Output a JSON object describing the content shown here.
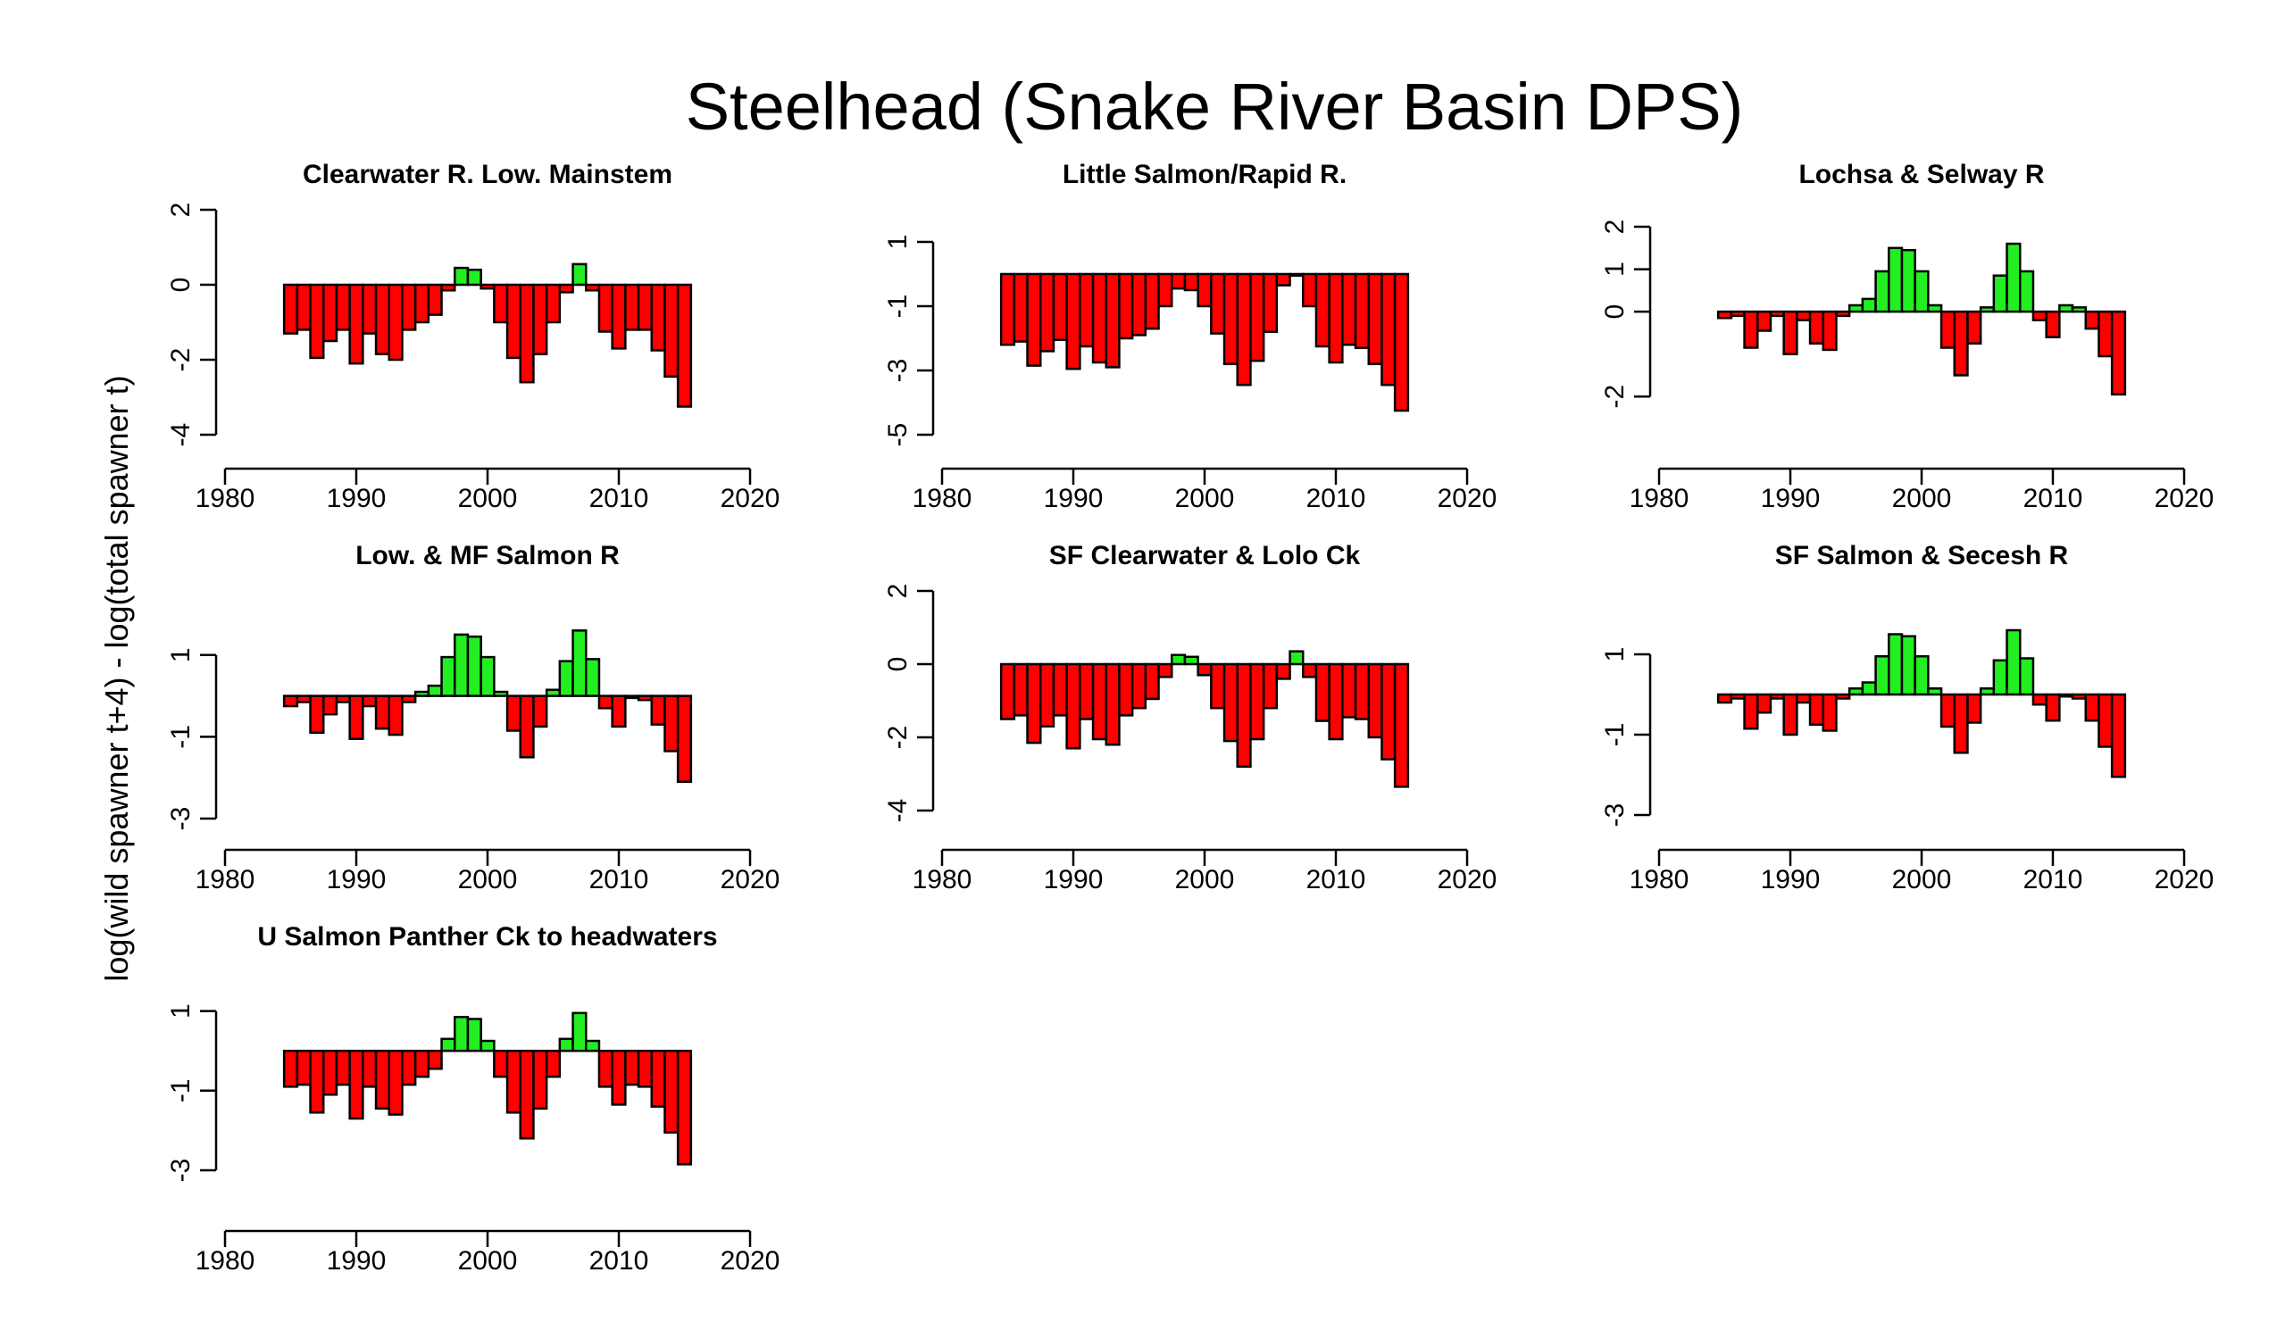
{
  "figure": {
    "title": "Steelhead (Snake River Basin DPS)",
    "ylabel": "log(wild spawner t+4) - log(total spawner t)",
    "colors": {
      "positive": "#22ee22",
      "negative": "#ff0000",
      "axis": "#000000"
    }
  },
  "chart_data": [
    {
      "type": "bar",
      "title": "Clearwater R. Low. Mainstem",
      "x": [
        1985,
        1986,
        1987,
        1988,
        1989,
        1990,
        1991,
        1992,
        1993,
        1994,
        1995,
        1996,
        1997,
        1998,
        1999,
        2000,
        2001,
        2002,
        2003,
        2004,
        2005,
        2006,
        2007,
        2008,
        2009,
        2010,
        2011,
        2012,
        2013,
        2014,
        2015
      ],
      "values": [
        -1.3,
        -1.2,
        -1.95,
        -1.5,
        -1.2,
        -2.1,
        -1.3,
        -1.85,
        -2.0,
        -1.2,
        -1.0,
        -0.8,
        -0.15,
        0.45,
        0.4,
        -0.1,
        -1.0,
        -1.95,
        -2.6,
        -1.85,
        -1.0,
        -0.2,
        0.55,
        -0.15,
        -1.25,
        -1.7,
        -1.2,
        -1.2,
        -1.75,
        -2.45,
        -3.25
      ],
      "xlim": [
        1980,
        2020
      ],
      "xticks": [
        1980,
        1990,
        2000,
        2010,
        2020
      ],
      "ylim": [
        -4,
        2
      ],
      "yticks": [
        -4,
        -2,
        0,
        2
      ],
      "ytick_labels": [
        "-4",
        "-2",
        "0",
        "2"
      ]
    },
    {
      "type": "bar",
      "title": "Little Salmon/Rapid R.",
      "x": [
        1985,
        1986,
        1987,
        1988,
        1989,
        1990,
        1991,
        1992,
        1993,
        1994,
        1995,
        1996,
        1997,
        1998,
        1999,
        2000,
        2001,
        2002,
        2003,
        2004,
        2005,
        2006,
        2007,
        2008,
        2009,
        2010,
        2011,
        2012,
        2013,
        2014,
        2015
      ],
      "values": [
        -2.2,
        -2.1,
        -2.85,
        -2.4,
        -2.05,
        -2.95,
        -2.25,
        -2.75,
        -2.9,
        -2.0,
        -1.9,
        -1.7,
        -1.0,
        -0.45,
        -0.5,
        -1.0,
        -1.85,
        -2.8,
        -3.45,
        -2.7,
        -1.8,
        -0.35,
        -0.05,
        -1.0,
        -2.25,
        -2.75,
        -2.2,
        -2.3,
        -2.8,
        -3.45,
        -4.25
      ],
      "xlim": [
        1980,
        2020
      ],
      "xticks": [
        1980,
        1990,
        2000,
        2010,
        2020
      ],
      "ylim": [
        -5,
        2
      ],
      "yticks": [
        -5,
        -3,
        -1,
        1
      ],
      "ytick_labels": [
        "-5",
        "-3",
        "-1",
        "1"
      ]
    },
    {
      "type": "bar",
      "title": "Lochsa & Selway R",
      "x": [
        1985,
        1986,
        1987,
        1988,
        1989,
        1990,
        1991,
        1992,
        1993,
        1994,
        1995,
        1996,
        1997,
        1998,
        1999,
        2000,
        2001,
        2002,
        2003,
        2004,
        2005,
        2006,
        2007,
        2008,
        2009,
        2010,
        2011,
        2012,
        2013,
        2014,
        2015
      ],
      "values": [
        -0.15,
        -0.1,
        -0.85,
        -0.45,
        -0.1,
        -1.0,
        -0.2,
        -0.75,
        -0.9,
        -0.1,
        0.15,
        0.3,
        0.95,
        1.5,
        1.45,
        0.95,
        0.15,
        -0.85,
        -1.5,
        -0.75,
        0.1,
        0.85,
        1.6,
        0.95,
        -0.2,
        -0.6,
        0.15,
        0.1,
        -0.4,
        -1.05,
        -1.95
      ],
      "xlim": [
        1980,
        2020
      ],
      "xticks": [
        1980,
        1990,
        2000,
        2010,
        2020
      ],
      "ylim": [
        -2.9,
        2.4
      ],
      "yticks": [
        -2,
        0,
        1,
        2
      ],
      "ytick_labels": [
        "-2",
        "0",
        "1",
        "2"
      ]
    },
    {
      "type": "bar",
      "title": "Low. & MF Salmon R",
      "x": [
        1985,
        1986,
        1987,
        1988,
        1989,
        1990,
        1991,
        1992,
        1993,
        1994,
        1995,
        1996,
        1997,
        1998,
        1999,
        2000,
        2001,
        2002,
        2003,
        2004,
        2005,
        2006,
        2007,
        2008,
        2009,
        2010,
        2011,
        2012,
        2013,
        2014,
        2015
      ],
      "values": [
        -0.25,
        -0.15,
        -0.9,
        -0.45,
        -0.15,
        -1.05,
        -0.25,
        -0.8,
        -0.95,
        -0.15,
        0.1,
        0.25,
        0.95,
        1.5,
        1.45,
        0.95,
        0.1,
        -0.85,
        -1.5,
        -0.75,
        0.15,
        0.85,
        1.6,
        0.9,
        -0.3,
        -0.75,
        -0.05,
        -0.1,
        -0.7,
        -1.35,
        -2.1
      ],
      "xlim": [
        1980,
        2020
      ],
      "xticks": [
        1980,
        1990,
        2000,
        2010,
        2020
      ],
      "ylim": [
        -3,
        2
      ],
      "yticks": [
        -3,
        -1,
        1
      ],
      "ytick_labels": [
        "-3",
        "-1",
        "1"
      ]
    },
    {
      "type": "bar",
      "title": "SF Clearwater & Lolo Ck",
      "x": [
        1985,
        1986,
        1987,
        1988,
        1989,
        1990,
        1991,
        1992,
        1993,
        1994,
        1995,
        1996,
        1997,
        1998,
        1999,
        2000,
        2001,
        2002,
        2003,
        2004,
        2005,
        2006,
        2007,
        2008,
        2009,
        2010,
        2011,
        2012,
        2013,
        2014,
        2015
      ],
      "values": [
        -1.5,
        -1.4,
        -2.15,
        -1.7,
        -1.4,
        -2.3,
        -1.5,
        -2.05,
        -2.2,
        -1.4,
        -1.2,
        -0.95,
        -0.35,
        0.25,
        0.2,
        -0.3,
        -1.2,
        -2.1,
        -2.8,
        -2.05,
        -1.2,
        -0.4,
        0.35,
        -0.35,
        -1.55,
        -2.05,
        -1.45,
        -1.5,
        -2.0,
        -2.6,
        -3.35
      ],
      "xlim": [
        1980,
        2020
      ],
      "xticks": [
        1980,
        1990,
        2000,
        2010,
        2020
      ],
      "ylim": [
        -4,
        2
      ],
      "yticks": [
        -4,
        -2,
        0,
        2
      ],
      "ytick_labels": [
        "-4",
        "-2",
        "0",
        "2"
      ]
    },
    {
      "type": "bar",
      "title": "SF Salmon & Secesh R",
      "x": [
        1985,
        1986,
        1987,
        1988,
        1989,
        1990,
        1991,
        1992,
        1993,
        1994,
        1995,
        1996,
        1997,
        1998,
        1999,
        2000,
        2001,
        2002,
        2003,
        2004,
        2005,
        2006,
        2007,
        2008,
        2009,
        2010,
        2011,
        2012,
        2013,
        2014,
        2015
      ],
      "values": [
        -0.2,
        -0.1,
        -0.85,
        -0.45,
        -0.1,
        -1.0,
        -0.2,
        -0.75,
        -0.9,
        -0.1,
        0.15,
        0.3,
        0.95,
        1.5,
        1.45,
        0.95,
        0.15,
        -0.8,
        -1.45,
        -0.7,
        0.15,
        0.85,
        1.6,
        0.9,
        -0.25,
        -0.65,
        -0.05,
        -0.1,
        -0.65,
        -1.3,
        -2.05
      ],
      "xlim": [
        1980,
        2020
      ],
      "xticks": [
        1980,
        1990,
        2000,
        2010,
        2020
      ],
      "ylim": [
        -3,
        2
      ],
      "yticks": [
        -3,
        -1,
        1
      ],
      "ytick_labels": [
        "-3",
        "-1",
        "1"
      ]
    },
    {
      "type": "bar",
      "title": "U Salmon Panther Ck to headwaters",
      "x": [
        1985,
        1986,
        1987,
        1988,
        1989,
        1990,
        1991,
        1992,
        1993,
        1994,
        1995,
        1996,
        1997,
        1998,
        1999,
        2000,
        2001,
        2002,
        2003,
        2004,
        2005,
        2006,
        2007,
        2008,
        2009,
        2010,
        2011,
        2012,
        2013,
        2014,
        2015
      ],
      "values": [
        -0.9,
        -0.85,
        -1.55,
        -1.1,
        -0.85,
        -1.7,
        -0.9,
        -1.45,
        -1.6,
        -0.85,
        -0.65,
        -0.45,
        0.3,
        0.85,
        0.8,
        0.25,
        -0.65,
        -1.55,
        -2.2,
        -1.45,
        -0.65,
        0.3,
        0.95,
        0.25,
        -0.9,
        -1.35,
        -0.85,
        -0.9,
        -1.4,
        -2.05,
        -2.85
      ],
      "xlim": [
        1980,
        2020
      ],
      "xticks": [
        1980,
        1990,
        2000,
        2010,
        2020
      ],
      "ylim": [
        -3,
        2
      ],
      "yticks": [
        -3,
        -1,
        1
      ],
      "ytick_labels": [
        "-3",
        "-1",
        "1"
      ]
    }
  ]
}
